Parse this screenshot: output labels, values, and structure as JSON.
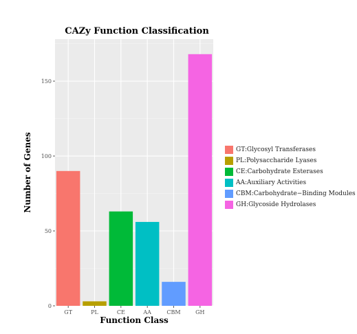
{
  "chart_data": {
    "type": "bar",
    "title": "CAZy Function Classification",
    "xlabel": "Function Class",
    "ylabel": "Number of Genes",
    "categories": [
      "GT",
      "PL",
      "CE",
      "AA",
      "CBM",
      "GH"
    ],
    "values": [
      90,
      3,
      63,
      56,
      16,
      168
    ],
    "colors": [
      "#F8766D",
      "#B79F00",
      "#00BA38",
      "#00BFC4",
      "#619CFF",
      "#F564E3"
    ],
    "ylim": [
      0,
      178
    ],
    "yticks": [
      0,
      50,
      100,
      150
    ],
    "grid": true,
    "legend_position": "right",
    "legend": [
      "GT:Glycosyl Transferases",
      "PL:Polysaccharide Lyases",
      "CE:Carbohydrate Esterases",
      "AA:Auxiliary Activities",
      "CBM:Carbohydrate−Binding Modules",
      "GH:Glycoside Hydrolases"
    ]
  }
}
